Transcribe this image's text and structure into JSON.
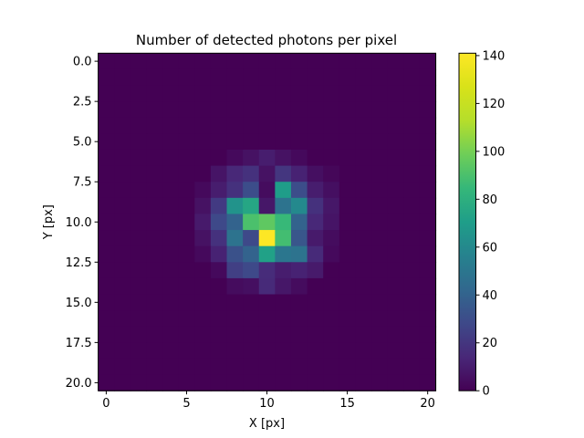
{
  "chart_data": {
    "type": "heatmap",
    "title": "Number of detected photons per pixel",
    "xlabel": "X [px]",
    "ylabel": "Y [px]",
    "x_range": [
      -0.5,
      20.5
    ],
    "y_range": [
      -0.5,
      20.5
    ],
    "y_inverted": true,
    "x_ticks": [
      "0",
      "5",
      "10",
      "15",
      "20"
    ],
    "y_ticks": [
      "0.0",
      "2.5",
      "5.0",
      "7.5",
      "10.0",
      "12.5",
      "15.0",
      "17.5",
      "20.0"
    ],
    "colorbar_ticks": [
      "0",
      "20",
      "40",
      "60",
      "80",
      "100",
      "120",
      "140"
    ],
    "colormap": "viridis",
    "vmin": 0,
    "vmax": 141,
    "grid": false,
    "rows": 21,
    "cols": 21,
    "values": [
      [
        0,
        0,
        0,
        0,
        0,
        0,
        0,
        0,
        0,
        0,
        0,
        0,
        0,
        0,
        0,
        0,
        0,
        0,
        0,
        0,
        0
      ],
      [
        0,
        0,
        0,
        0,
        0,
        0,
        0,
        0,
        0,
        0,
        0,
        0,
        0,
        0,
        0,
        0,
        0,
        0,
        0,
        0,
        0
      ],
      [
        0,
        0,
        0,
        0,
        0,
        0,
        0,
        0,
        0,
        0,
        0,
        0,
        0,
        0,
        0,
        0,
        0,
        0,
        0,
        0,
        0
      ],
      [
        0,
        0,
        0,
        0,
        0,
        0,
        0,
        0,
        0,
        0,
        0,
        0,
        0,
        0,
        0,
        0,
        0,
        0,
        0,
        0,
        0
      ],
      [
        0,
        0,
        0,
        0,
        0,
        0,
        0,
        0,
        0,
        0,
        0,
        0,
        0,
        0,
        0,
        0,
        0,
        0,
        0,
        0,
        0
      ],
      [
        0,
        0,
        0,
        0,
        0,
        0,
        0,
        0,
        0,
        0,
        0,
        0,
        0,
        0,
        0,
        0,
        0,
        0,
        0,
        0,
        0
      ],
      [
        0,
        0,
        0,
        0,
        0,
        0,
        0,
        0,
        3,
        6,
        10,
        6,
        3,
        0,
        0,
        0,
        0,
        0,
        0,
        0,
        0
      ],
      [
        0,
        0,
        0,
        0,
        0,
        0,
        0,
        7,
        14,
        18,
        6,
        20,
        12,
        5,
        2,
        0,
        0,
        0,
        0,
        0,
        0
      ],
      [
        0,
        0,
        0,
        0,
        0,
        0,
        3,
        10,
        18,
        30,
        4,
        70,
        30,
        10,
        5,
        0,
        0,
        0,
        0,
        0,
        0
      ],
      [
        0,
        0,
        0,
        0,
        0,
        0,
        6,
        22,
        65,
        75,
        8,
        48,
        60,
        18,
        8,
        0,
        0,
        0,
        0,
        0,
        0
      ],
      [
        0,
        0,
        0,
        0,
        0,
        0,
        9,
        28,
        40,
        90,
        95,
        85,
        40,
        14,
        7,
        0,
        0,
        0,
        0,
        0,
        0
      ],
      [
        0,
        0,
        0,
        0,
        0,
        0,
        6,
        18,
        48,
        28,
        141,
        88,
        34,
        9,
        4,
        0,
        0,
        0,
        0,
        0,
        0
      ],
      [
        0,
        0,
        0,
        0,
        0,
        0,
        3,
        12,
        32,
        40,
        72,
        50,
        48,
        15,
        3,
        0,
        0,
        0,
        0,
        0,
        0
      ],
      [
        0,
        0,
        0,
        0,
        0,
        0,
        0,
        3,
        24,
        28,
        16,
        10,
        12,
        9,
        0,
        0,
        0,
        0,
        0,
        0,
        0
      ],
      [
        0,
        0,
        0,
        0,
        0,
        0,
        0,
        0,
        4,
        5,
        15,
        8,
        4,
        0,
        0,
        0,
        0,
        0,
        0,
        0,
        0
      ],
      [
        0,
        0,
        0,
        0,
        0,
        0,
        0,
        0,
        0,
        0,
        0,
        0,
        0,
        0,
        0,
        0,
        0,
        0,
        0,
        0,
        0
      ],
      [
        0,
        0,
        0,
        0,
        0,
        0,
        0,
        0,
        0,
        0,
        0,
        0,
        0,
        0,
        0,
        0,
        0,
        0,
        0,
        0,
        0
      ],
      [
        0,
        0,
        0,
        0,
        0,
        0,
        0,
        0,
        0,
        0,
        0,
        0,
        0,
        0,
        0,
        0,
        0,
        0,
        0,
        0,
        0
      ],
      [
        0,
        0,
        0,
        0,
        0,
        0,
        0,
        0,
        0,
        0,
        0,
        0,
        0,
        0,
        0,
        0,
        0,
        0,
        0,
        0,
        0
      ],
      [
        0,
        0,
        0,
        0,
        0,
        0,
        0,
        0,
        0,
        0,
        0,
        0,
        0,
        0,
        0,
        0,
        0,
        0,
        0,
        0,
        0
      ],
      [
        0,
        0,
        0,
        0,
        0,
        0,
        0,
        0,
        0,
        0,
        0,
        0,
        0,
        0,
        0,
        0,
        0,
        0,
        0,
        0,
        0
      ]
    ]
  }
}
